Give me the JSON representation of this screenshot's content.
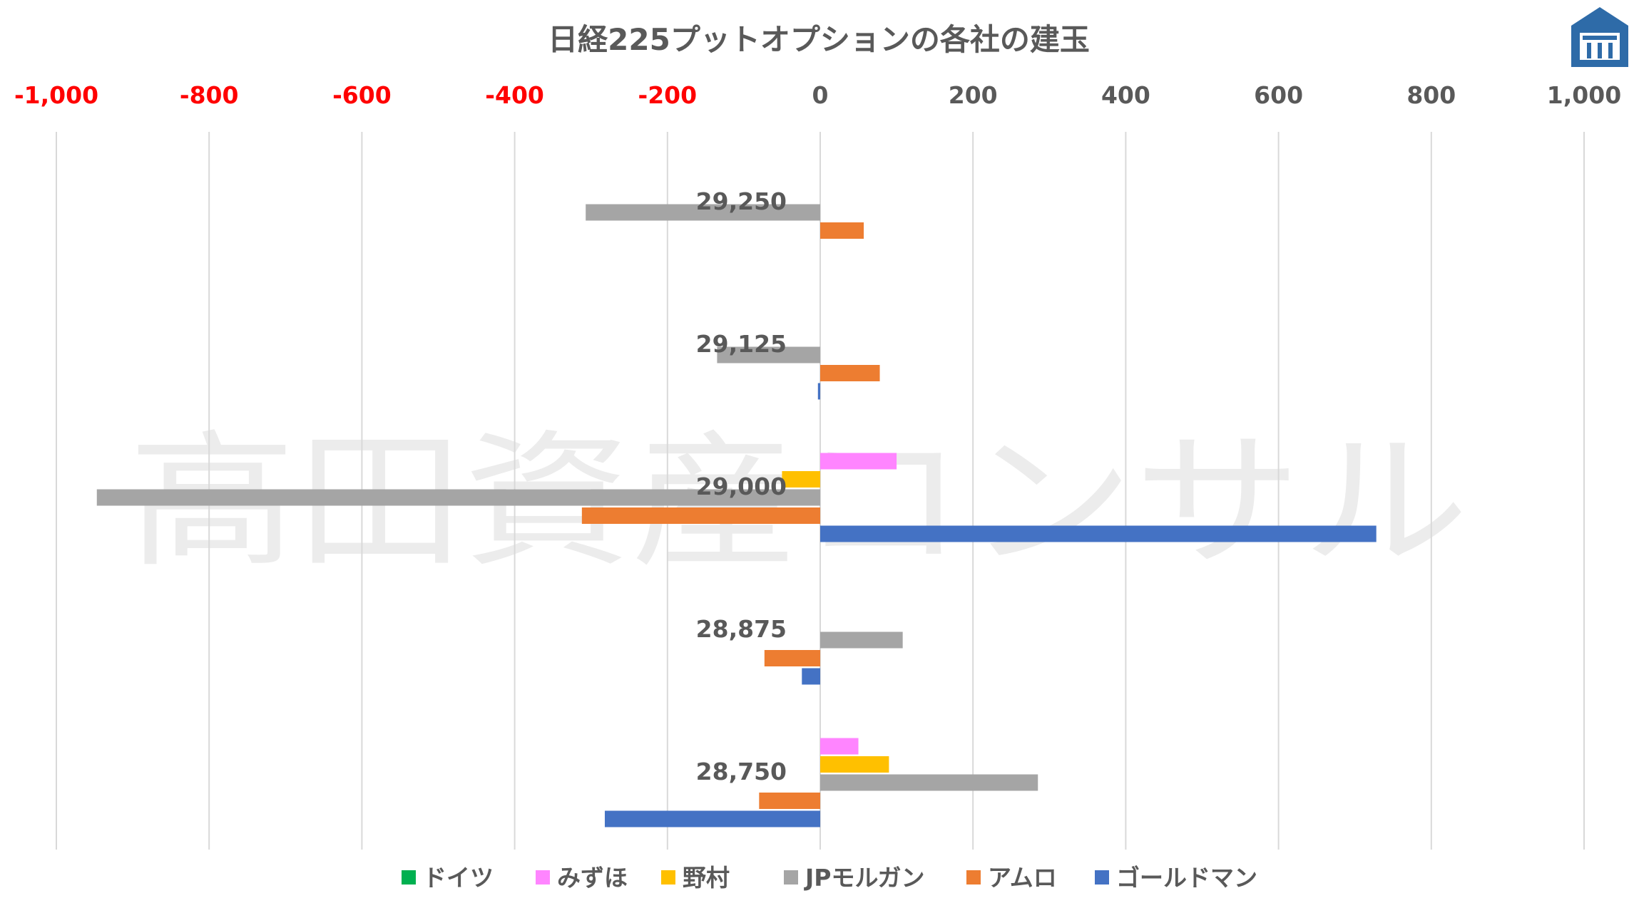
{
  "watermark": "高田資産コンサル",
  "logo": {
    "name": "house-logo",
    "color": "#2E6BA8"
  },
  "chart_data": {
    "type": "bar",
    "orientation": "horizontal",
    "title": "日経225プットオプションの各社の建玉",
    "xlabel": "",
    "ylabel": "",
    "xlim": [
      -1000,
      1000
    ],
    "x_ticks": [
      -1000,
      -800,
      -600,
      -400,
      -200,
      0,
      200,
      400,
      600,
      800,
      1000
    ],
    "x_tick_labels": [
      "-1,000",
      "-800",
      "-600",
      "-400",
      "-200",
      "0",
      "200",
      "400",
      "600",
      "800",
      "1,000"
    ],
    "negative_tick_color": "#FF0000",
    "positive_tick_color": "#595959",
    "grid": true,
    "legend_position": "bottom",
    "categories": [
      "29,250",
      "29,125",
      "29,000",
      "28,875",
      "28,750"
    ],
    "series": [
      {
        "name": "ドイツ",
        "color": "#00B050",
        "values": [
          0,
          0,
          0,
          0,
          0
        ]
      },
      {
        "name": "みずほ",
        "color": "#FF85FF",
        "values": [
          0,
          0,
          100,
          0,
          50
        ]
      },
      {
        "name": "野村",
        "color": "#FFC000",
        "values": [
          0,
          0,
          -50,
          0,
          90
        ]
      },
      {
        "name": "JPモルガン",
        "color": "#A5A5A5",
        "values": [
          -307,
          -135,
          -947,
          108,
          285
        ]
      },
      {
        "name": "アムロ",
        "color": "#ED7D31",
        "values": [
          57,
          78,
          -312,
          -73,
          -80
        ]
      },
      {
        "name": "ゴールドマン",
        "color": "#4472C4",
        "values": [
          0,
          -3,
          728,
          -24,
          -282
        ]
      }
    ]
  }
}
